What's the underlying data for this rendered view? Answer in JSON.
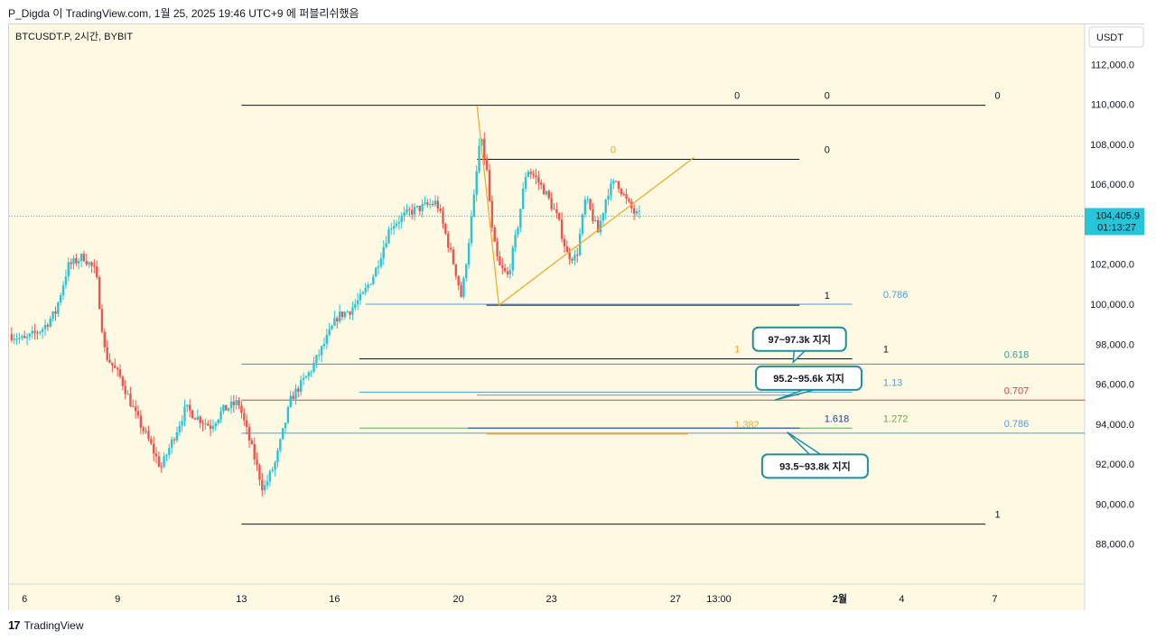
{
  "header": {
    "attribution": "P_Digda 이 TradingView.com, 1월 25, 2025 19:46 UTC+9 에 퍼블리쉬했음"
  },
  "footer": {
    "logo_mark": "17",
    "brand": "TradingView"
  },
  "colors": {
    "background": "#fdf9e3",
    "up": "#26c6da",
    "down": "#ef5350",
    "accent_orange": "#f5a623",
    "fib_teal": "#3b9c8f",
    "fib_blue": "#5b9bd5",
    "fib_red": "#e53950",
    "callout_border": "#1f8f9a"
  },
  "chart_data": {
    "type": "candlestick",
    "symbol_label": "BTCUSDT.P, 2시간, BYBIT",
    "currency": "USDT",
    "ylim": [
      86000,
      114000
    ],
    "y_ticks": [
      "112,000.0",
      "110,000.0",
      "108,000.0",
      "106,000.0",
      "104,000.0",
      "102,000.0",
      "100,000.0",
      "98,000.0",
      "96,000.0",
      "94,000.0",
      "92,000.0",
      "90,000.0",
      "88,000.0"
    ],
    "y_tick_values": [
      112000,
      110000,
      108000,
      106000,
      104000,
      102000,
      100000,
      98000,
      96000,
      94000,
      92000,
      90000,
      88000
    ],
    "x_ticks": [
      {
        "label": "6",
        "day": 6
      },
      {
        "label": "9",
        "day": 9
      },
      {
        "label": "13",
        "day": 13
      },
      {
        "label": "16",
        "day": 16
      },
      {
        "label": "20",
        "day": 20
      },
      {
        "label": "23",
        "day": 23
      },
      {
        "label": "27",
        "day": 27
      },
      {
        "label": "13:00",
        "day": 28.4
      },
      {
        "label": "2월",
        "day": 32.3,
        "bold": true
      },
      {
        "label": "4",
        "day": 34.3
      },
      {
        "label": "7",
        "day": 37.3
      }
    ],
    "xlim_days": [
      5.5,
      40.2
    ],
    "current_price": {
      "price": 104405.9,
      "label": "104,405.9",
      "countdown": "01:13:27"
    },
    "price_anchors": [
      [
        5.5,
        98500
      ],
      [
        6.0,
        98200
      ],
      [
        6.6,
        98800
      ],
      [
        7.0,
        99600
      ],
      [
        7.4,
        101900
      ],
      [
        7.9,
        102400
      ],
      [
        8.3,
        101600
      ],
      [
        8.6,
        97500
      ],
      [
        9.1,
        96300
      ],
      [
        9.6,
        94400
      ],
      [
        10.0,
        93200
      ],
      [
        10.4,
        91800
      ],
      [
        10.8,
        93300
      ],
      [
        11.2,
        94800
      ],
      [
        11.6,
        94300
      ],
      [
        12.0,
        93900
      ],
      [
        12.4,
        94700
      ],
      [
        12.9,
        95100
      ],
      [
        13.4,
        92400
      ],
      [
        13.7,
        90700
      ],
      [
        14.1,
        92100
      ],
      [
        14.6,
        95300
      ],
      [
        15.2,
        96600
      ],
      [
        15.6,
        97800
      ],
      [
        16.1,
        99400
      ],
      [
        16.5,
        99700
      ],
      [
        16.9,
        100400
      ],
      [
        17.3,
        101600
      ],
      [
        17.8,
        103900
      ],
      [
        18.4,
        104600
      ],
      [
        18.9,
        104900
      ],
      [
        19.3,
        105100
      ],
      [
        19.9,
        101700
      ],
      [
        20.1,
        100300
      ],
      [
        20.3,
        102800
      ],
      [
        20.5,
        105300
      ],
      [
        20.7,
        108400
      ],
      [
        20.9,
        106900
      ],
      [
        21.1,
        103400
      ],
      [
        21.3,
        101900
      ],
      [
        21.6,
        101400
      ],
      [
        21.9,
        103800
      ],
      [
        22.2,
        106800
      ],
      [
        22.5,
        106300
      ],
      [
        22.8,
        105600
      ],
      [
        23.2,
        104300
      ],
      [
        23.5,
        102500
      ],
      [
        23.8,
        102300
      ],
      [
        24.1,
        105300
      ],
      [
        24.5,
        103600
      ],
      [
        24.8,
        105600
      ],
      [
        25.1,
        106200
      ],
      [
        25.4,
        105200
      ],
      [
        25.7,
        104500
      ],
      [
        25.9,
        104400
      ]
    ],
    "horizontal_lines": [
      {
        "price": 109950,
        "x0": 13.0,
        "x1": 37.0,
        "color": "#131722",
        "labels": [
          {
            "text": "0",
            "day": 28.9
          },
          {
            "text": "0",
            "day": 31.8
          },
          {
            "text": "0",
            "day": 37.3
          }
        ]
      },
      {
        "price": 107250,
        "x0": 20.6,
        "x1": 31.0,
        "color": "#131722",
        "labels": [
          {
            "text": "0",
            "day": 31.8
          },
          {
            "text": "0",
            "day": 24.9,
            "color": "#f5a623"
          }
        ]
      },
      {
        "price": 99950,
        "x0": 20.9,
        "x1": 31.0,
        "color": "#131722",
        "labels": [
          {
            "text": "1",
            "day": 31.8
          }
        ]
      },
      {
        "price": 100000,
        "x0": 17.0,
        "x1": 32.7,
        "color": "#5b9bd5",
        "labels": [
          {
            "text": "0.786",
            "day": 33.7,
            "color": "#5b9bd5"
          }
        ]
      },
      {
        "price": 97270,
        "x0": 16.8,
        "x1": 32.7,
        "color": "#131722",
        "labels": [
          {
            "text": "1",
            "day": 33.7
          },
          {
            "text": "1",
            "day": 28.9,
            "color": "#f5a623"
          }
        ]
      },
      {
        "price": 97000,
        "x0": 13.0,
        "x1": 40.2,
        "color": "#3b9c8f",
        "labels": [
          {
            "text": "0.618",
            "day": 37.6,
            "color": "#3b9c8f"
          }
        ]
      },
      {
        "price": 95600,
        "x0": 16.8,
        "x1": 32.7,
        "color": "#5b9bd5",
        "labels": [
          {
            "text": "1.13",
            "day": 33.7,
            "color": "#5b9bd5"
          }
        ]
      },
      {
        "price": 95450,
        "x0": 20.6,
        "x1": 31.0,
        "color": "#5b9bd5",
        "labels": [
          {
            "text": "1.618",
            "day": 31.8,
            "color": "#5b9bd5"
          }
        ]
      },
      {
        "price": 95200,
        "x0": 13.0,
        "x1": 40.2,
        "color": "#e53950",
        "labels": [
          {
            "text": "0.707",
            "day": 37.6,
            "color": "#e53950"
          }
        ]
      },
      {
        "price": 93800,
        "x0": 16.8,
        "x1": 32.7,
        "color": "#6aa84f",
        "labels": [
          {
            "text": "1.272",
            "day": 33.7,
            "color": "#6aa84f"
          }
        ]
      },
      {
        "price": 93800,
        "x0": 20.3,
        "x1": 31.0,
        "color": "#1a3fb0",
        "labels": [
          {
            "text": "1.618",
            "day": 31.8,
            "color": "#1a3fb0"
          }
        ]
      },
      {
        "price": 93550,
        "x0": 13.0,
        "x1": 40.2,
        "color": "#5b9bd5",
        "labels": [
          {
            "text": "0.786",
            "day": 37.6,
            "color": "#5b9bd5"
          }
        ]
      },
      {
        "price": 93500,
        "x0": 20.9,
        "x1": 27.4,
        "color": "#f5a623",
        "labels": [
          {
            "text": "1.382",
            "day": 28.9,
            "color": "#f5a623"
          }
        ]
      },
      {
        "price": 89000,
        "x0": 13.0,
        "x1": 37.0,
        "color": "#131722",
        "labels": [
          {
            "text": "1",
            "day": 37.3
          }
        ]
      }
    ],
    "trend_lines": [
      {
        "from": [
          21.3,
          99950
        ],
        "to": [
          27.6,
          107350
        ],
        "color": "#f5a623"
      },
      {
        "from": [
          20.6,
          109900
        ],
        "to": [
          21.3,
          100000
        ],
        "color": "#f5a623"
      }
    ],
    "callouts": [
      {
        "text": "97~97.3k 지지",
        "box_day": 31.0,
        "box_price": 98250,
        "tip": [
          30.8,
          97100
        ]
      },
      {
        "text": "95.2~95.6k 지지",
        "box_day": 31.3,
        "box_price": 96300,
        "tip": [
          30.2,
          95200
        ]
      },
      {
        "text": "93.5~93.8k 지지",
        "box_day": 31.5,
        "box_price": 91900,
        "tip": [
          30.6,
          93600
        ]
      }
    ]
  }
}
